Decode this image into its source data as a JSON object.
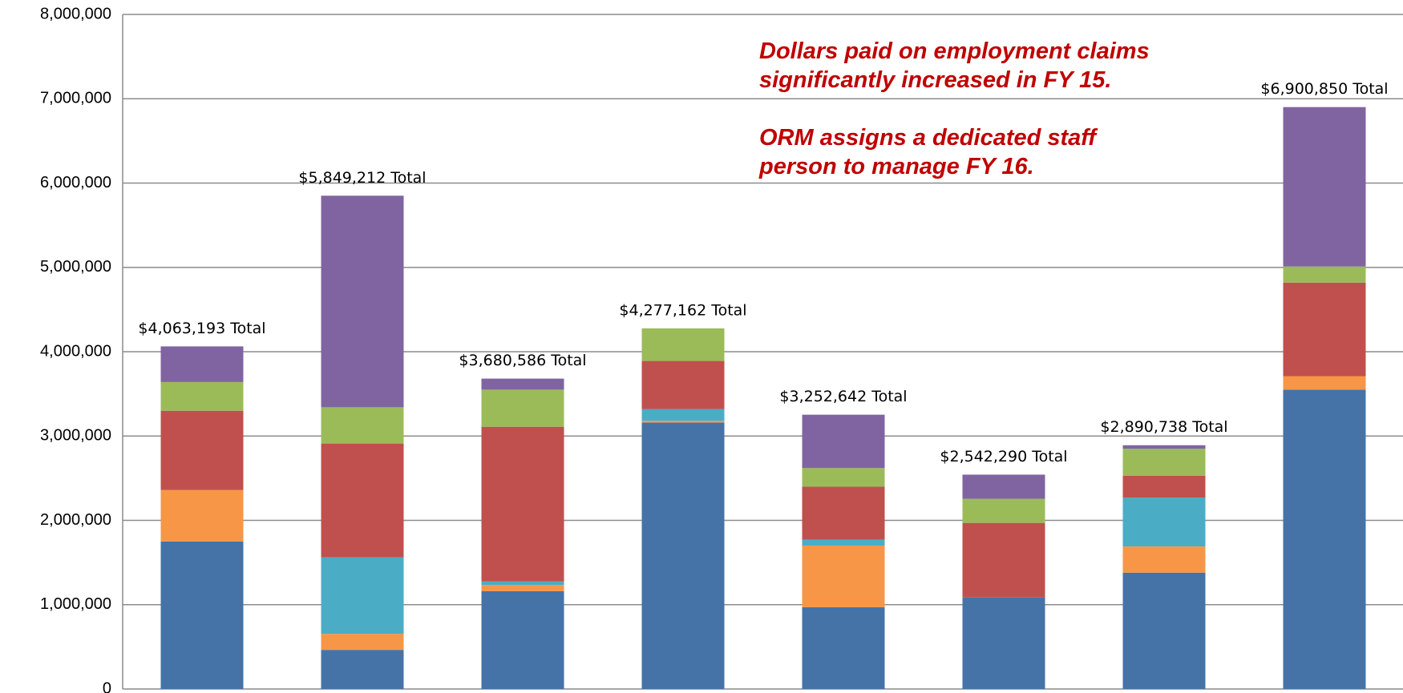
{
  "chart_data": {
    "type": "stacked-bar",
    "categories": [
      null,
      null,
      null,
      null,
      null,
      null,
      null,
      null
    ],
    "series": [
      {
        "color": "#4573a7",
        "values": [
          1750000,
          464000,
          1160000,
          3160000,
          970000,
          1086000,
          1380000,
          3550000
        ]
      },
      {
        "color": "#f79646",
        "values": [
          610000,
          190000,
          73000,
          20000,
          730000,
          0,
          310000,
          160000
        ]
      },
      {
        "color": "#4bacc6",
        "values": [
          0,
          907000,
          42000,
          140000,
          70000,
          0,
          580000,
          0
        ]
      },
      {
        "color": "#c0504d",
        "values": [
          940000,
          1350000,
          1835000,
          570000,
          630000,
          884000,
          260000,
          1110000
        ]
      },
      {
        "color": "#9bbb59",
        "values": [
          340000,
          430000,
          440000,
          387000,
          220000,
          286000,
          320000,
          190000
        ]
      },
      {
        "color": "#8064a2",
        "values": [
          423000,
          2509000,
          131000,
          0,
          633000,
          286000,
          41000,
          1891000
        ]
      }
    ],
    "totals": {
      "values": [
        4063193,
        5849212,
        3680586,
        4277162,
        3252642,
        2542290,
        2890738,
        6900850
      ],
      "value_labels": [
        "$4,063,193 Total",
        "$5,849,212 Total",
        "$3,680,586 Total",
        "$4,277,162 Total",
        "$3,252,642 Total",
        "$2,542,290 Total",
        "$2,890,738 Total",
        "$6,900,850 Total"
      ]
    },
    "annotations": [
      "Dollars paid on employment claims significantly increased in FY 15.",
      "ORM assigns a dedicated staff person to manage FY 16."
    ],
    "annotation_color": "#c00000",
    "ylim": [
      0,
      8000000
    ],
    "yticks": [
      0,
      {
        "value": 1000000,
        "label": "1,000,000"
      },
      {
        "value": 2000000,
        "label": "2,000,000"
      },
      {
        "value": 3000000,
        "label": "3,000,000"
      },
      {
        "value": 4000000,
        "label": "4,000,000"
      },
      {
        "value": 5000000,
        "label": "5,000,000"
      },
      {
        "value": 6000000,
        "label": "6,000,000"
      },
      {
        "value": 7000000,
        "label": "7,000,000"
      },
      {
        "value": 8000000,
        "label": "8,000,000"
      }
    ],
    "grid": true
  }
}
